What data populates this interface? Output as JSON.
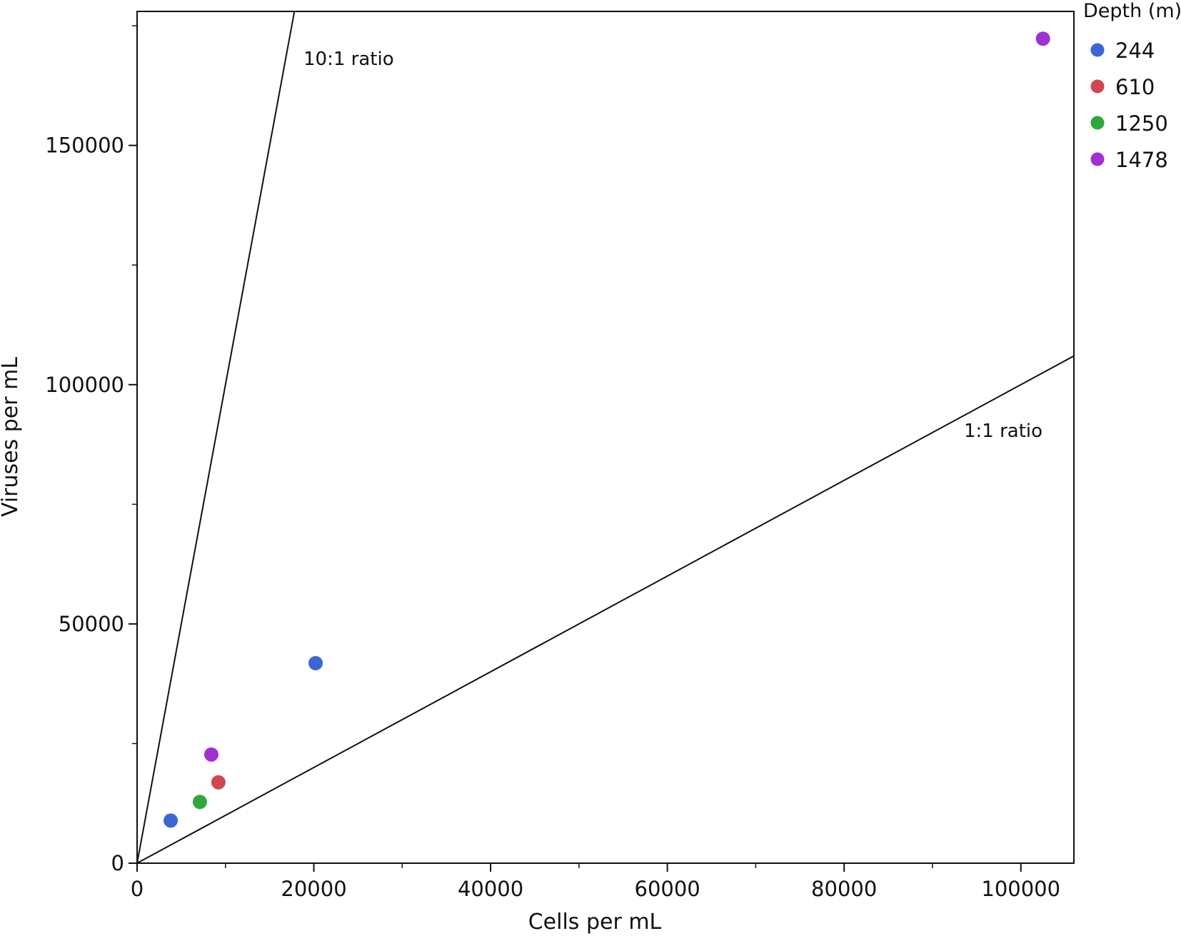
{
  "chart_data": {
    "type": "scatter",
    "xlabel": "Cells per mL",
    "ylabel": "Viruses per mL",
    "xlim": [
      0,
      106000
    ],
    "ylim": [
      0,
      178000
    ],
    "x_ticks": [
      "0",
      "20000",
      "40000",
      "60000",
      "80000",
      "100000"
    ],
    "y_ticks": [
      "0",
      "50000",
      "100000",
      "150000"
    ],
    "grid": false,
    "legend": {
      "title": "Depth (m)",
      "placement": "top-right outside",
      "entries": [
        "244",
        "610",
        "1250",
        "1478"
      ]
    },
    "series": [
      {
        "name": "244",
        "color": "#3a66d6",
        "x": [
          3800,
          20200
        ],
        "y": [
          8900,
          41800
        ]
      },
      {
        "name": "610",
        "color": "#d4454f",
        "x": [
          9200
        ],
        "y": [
          16900
        ]
      },
      {
        "name": "1250",
        "color": "#2ea83a",
        "x": [
          7100
        ],
        "y": [
          12800
        ]
      },
      {
        "name": "1478",
        "color": "#a02fd6",
        "x": [
          8400,
          102500
        ],
        "y": [
          22700,
          172300
        ]
      }
    ],
    "reference_lines": [
      {
        "label": "10:1 ratio",
        "slope": 10
      },
      {
        "label": "1:1 ratio",
        "slope": 1
      }
    ]
  }
}
